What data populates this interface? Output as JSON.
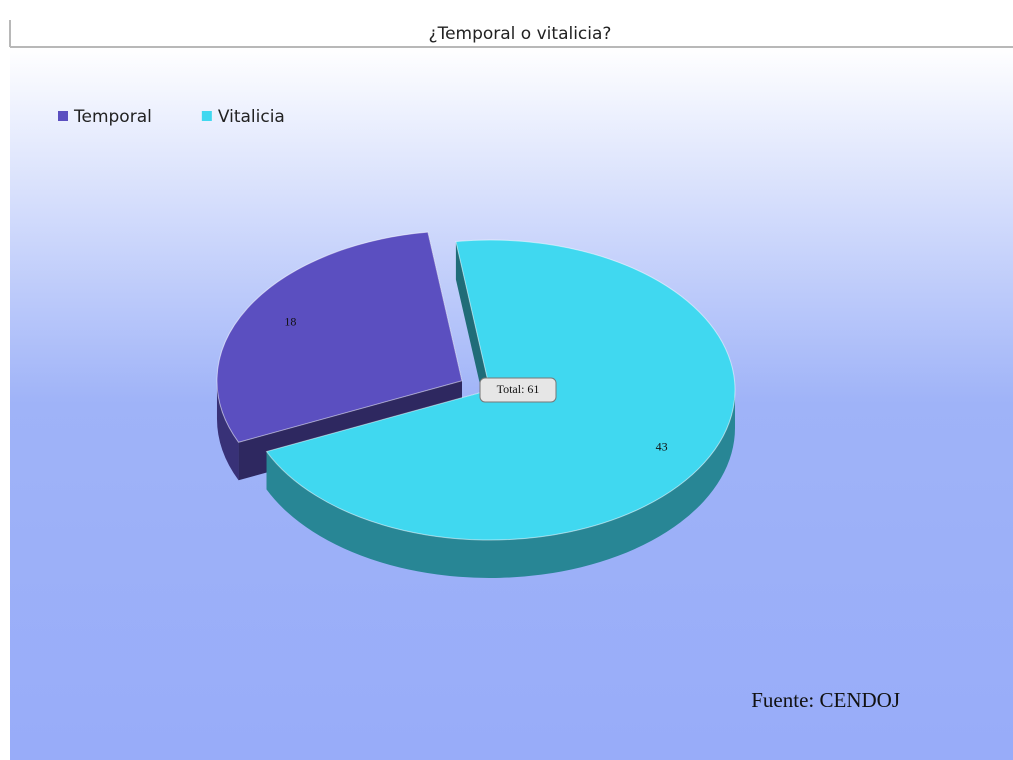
{
  "chart_data": {
    "type": "pie",
    "title": "¿Temporal o vitalicia?",
    "categories": [
      "Temporal",
      "Vitalicia"
    ],
    "values": [
      18,
      43
    ],
    "colors": [
      "#5b4fc0",
      "#40d8f0"
    ],
    "exploded": "Temporal",
    "center_label": "Total: 61",
    "source": "Fuente: CENDOJ",
    "legend": "top-left"
  }
}
